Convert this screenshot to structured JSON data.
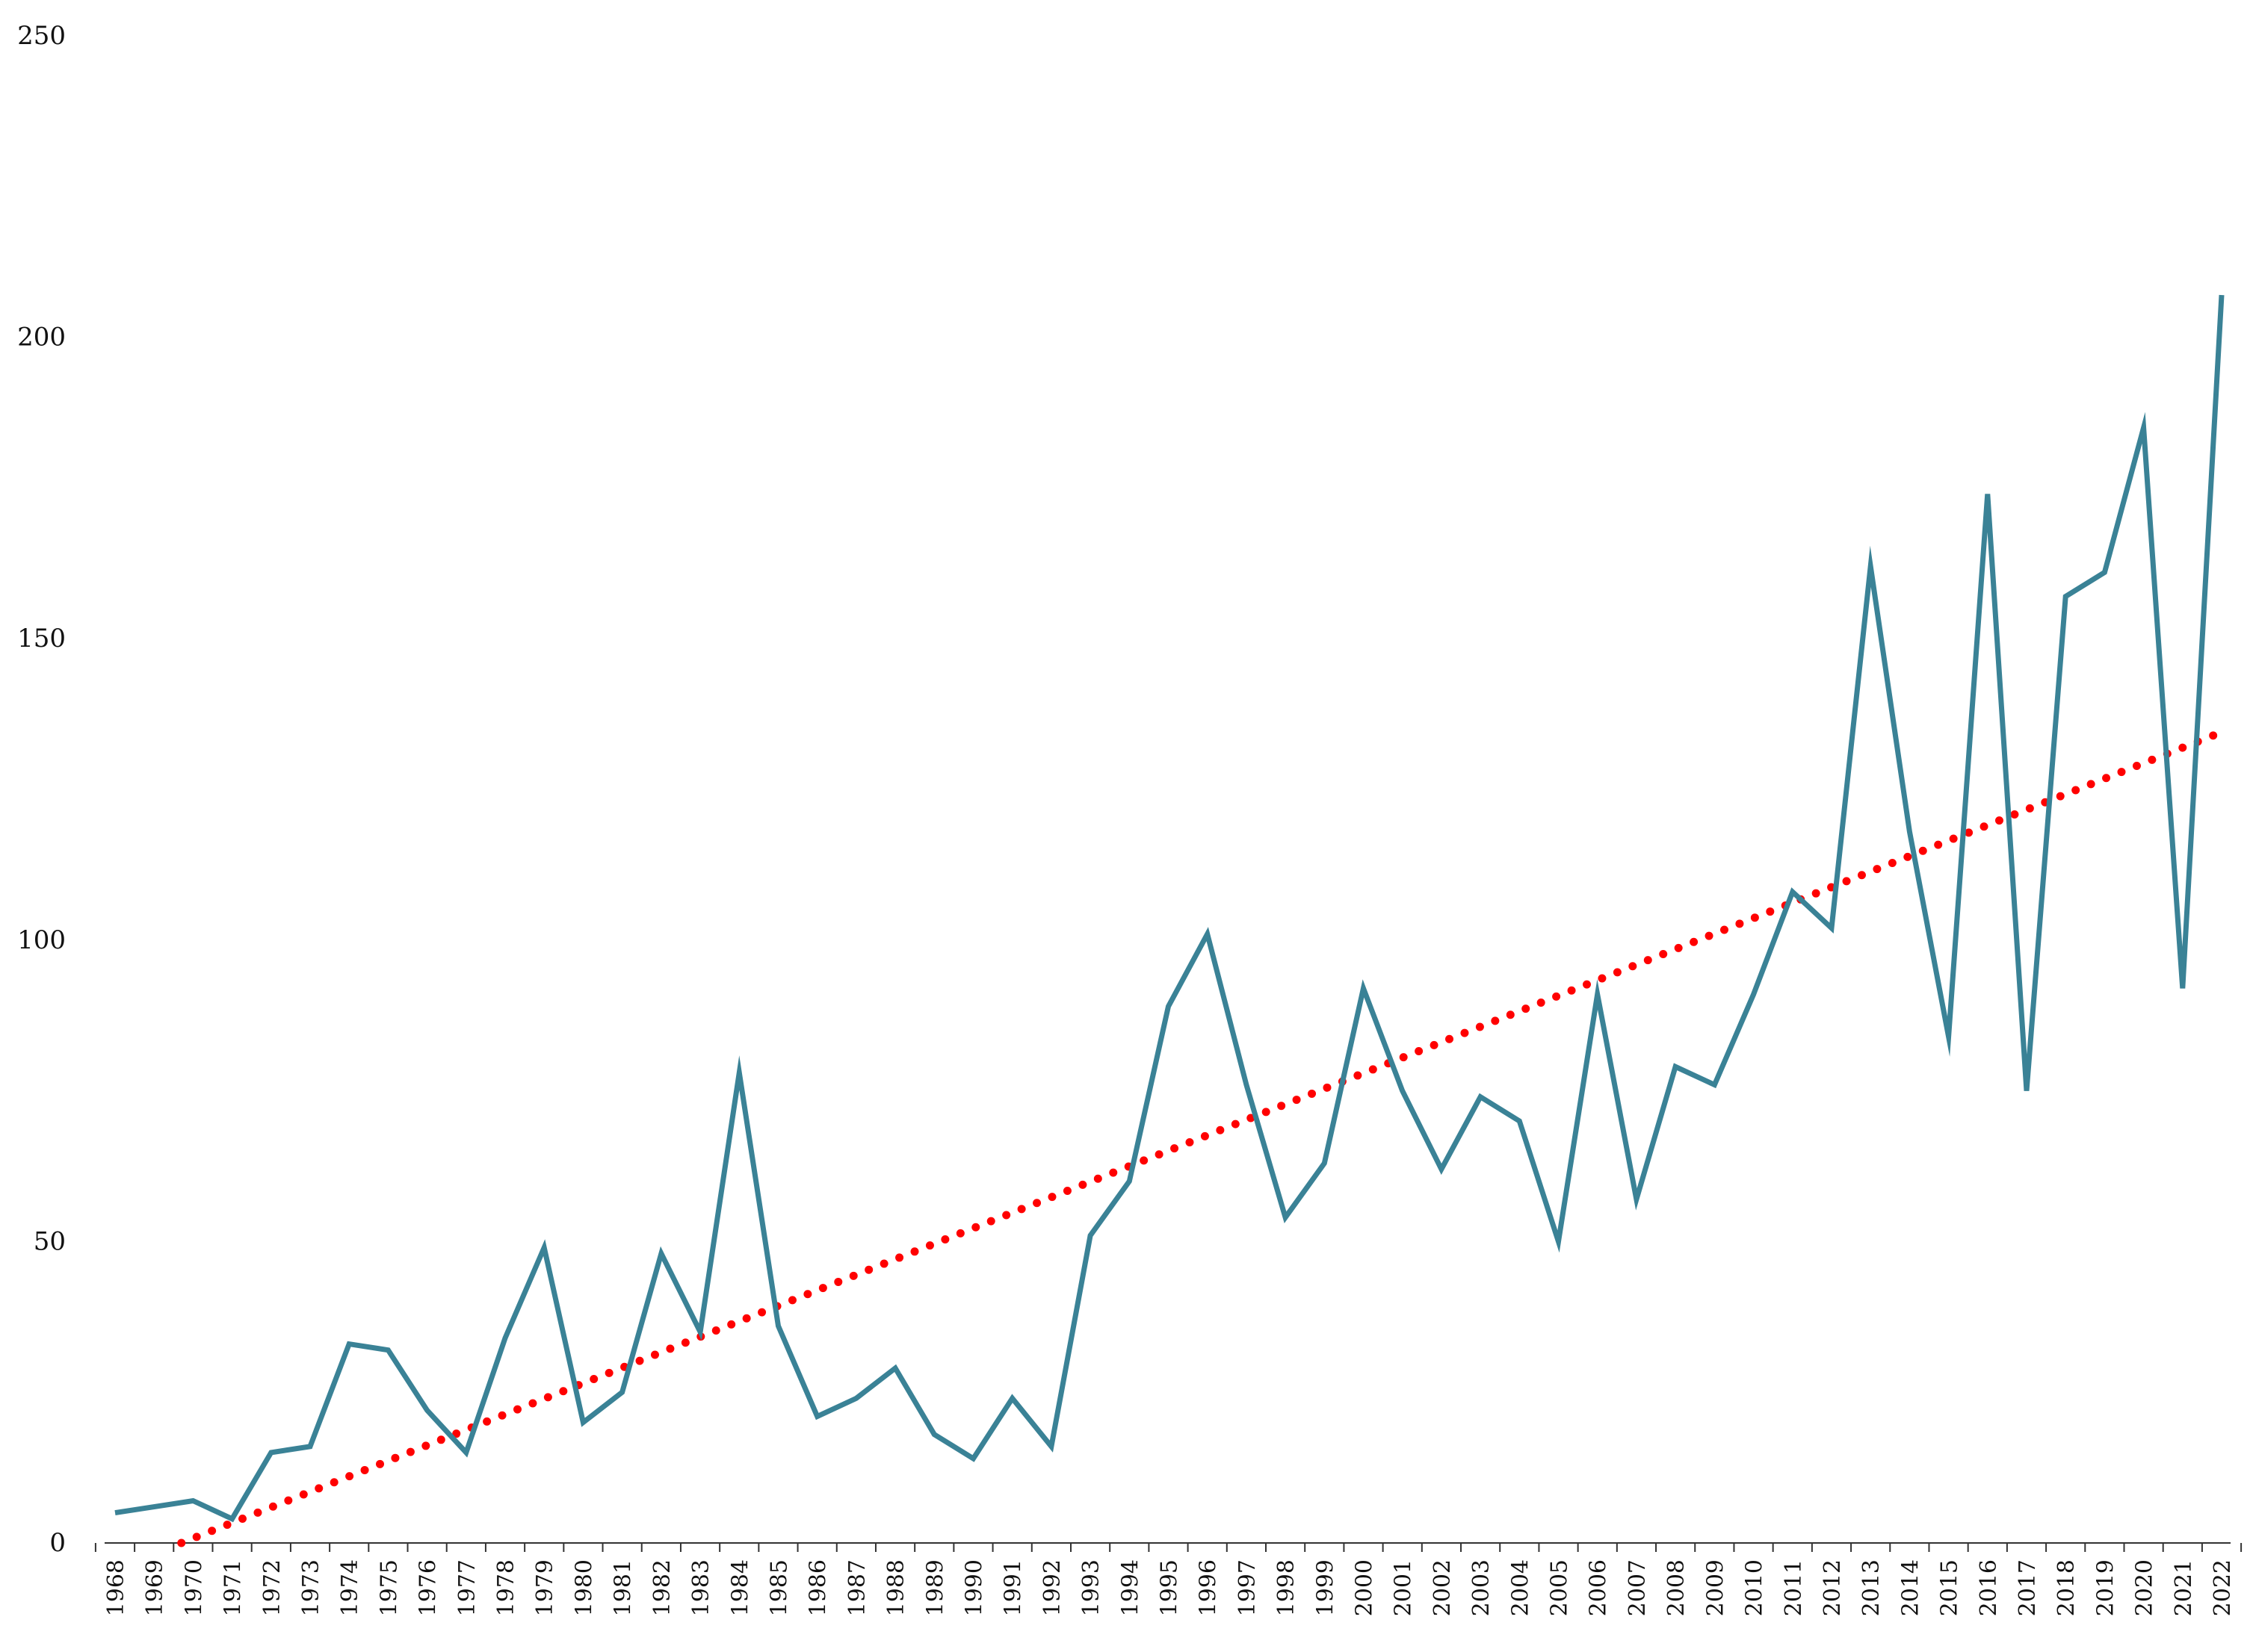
{
  "chart_data": {
    "type": "line",
    "title": "",
    "xlabel": "",
    "ylabel": "",
    "ylim": [
      0,
      250
    ],
    "y_ticks": [
      0,
      50,
      100,
      150,
      200,
      250
    ],
    "grid": false,
    "legend": "none",
    "x": [
      1968,
      1969,
      1970,
      1971,
      1972,
      1973,
      1974,
      1975,
      1976,
      1977,
      1978,
      1979,
      1980,
      1981,
      1982,
      1983,
      1984,
      1985,
      1986,
      1987,
      1988,
      1989,
      1990,
      1991,
      1992,
      1993,
      1994,
      1995,
      1996,
      1997,
      1998,
      1999,
      2000,
      2001,
      2002,
      2003,
      2004,
      2005,
      2006,
      2007,
      2008,
      2009,
      2010,
      2011,
      2012,
      2013,
      2014,
      2015,
      2016,
      2017,
      2018,
      2019,
      2020,
      2021,
      2022
    ],
    "series": [
      {
        "values": [
          5,
          6,
          7,
          4,
          15,
          16,
          33,
          32,
          22,
          15,
          34,
          49,
          20,
          25,
          48,
          35,
          78,
          36,
          21,
          24,
          29,
          18,
          14,
          24,
          16,
          51,
          60,
          89,
          101,
          76,
          54,
          63,
          92,
          75,
          62,
          74,
          70,
          50,
          91,
          57,
          79,
          76,
          91,
          108,
          102,
          162,
          118,
          84,
          174,
          75,
          157,
          161,
          185,
          92,
          207
        ],
        "color": "#3a8296",
        "style": "solid"
      },
      {
        "type": "linear-trendline",
        "start": {
          "x": 1969.7,
          "y": 0
        },
        "end": {
          "x": 2022,
          "y": 134.5
        },
        "color": "#ff0000",
        "style": "dotted"
      }
    ]
  }
}
